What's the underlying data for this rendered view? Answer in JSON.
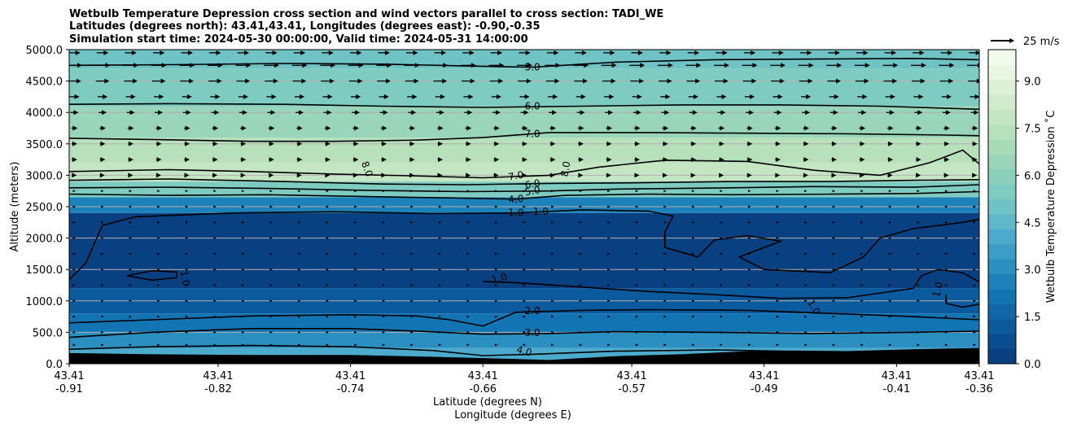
{
  "chart_data": {
    "type": "heatmap",
    "title_lines": [
      "Wetbulb Temperature Depression cross section and wind vectors parallel to cross section: TADI_WE",
      "Latitudes (degrees north): 43.41,43.41, Longitudes (degrees east): -0.90,-0.35",
      "Simulation start time: 2024-05-30 00:00:00, Valid time: 2024-05-31 14:00:00"
    ],
    "xlabel_lines": [
      "Latitude (degrees N)",
      "Longitude (degrees E)"
    ],
    "ylabel": "Altitude (meters)",
    "ylim": [
      0,
      5000
    ],
    "xlim": [
      -0.91,
      -0.36
    ],
    "y_ticks": [
      0,
      500,
      1000,
      1500,
      2000,
      2500,
      3000,
      3500,
      4000,
      4500,
      5000
    ],
    "y_tick_labels": [
      "0.0",
      "500.0",
      "1000.0",
      "1500.0",
      "2000.0",
      "2500.0",
      "3000.0",
      "3500.0",
      "4000.0",
      "4500.0",
      "5000.0"
    ],
    "x_ticks": [
      {
        "lon": -0.91,
        "lat_label": "43.41",
        "lon_label": "-0.91"
      },
      {
        "lon": -0.82,
        "lat_label": "43.41",
        "lon_label": "-0.82"
      },
      {
        "lon": -0.74,
        "lat_label": "43.41",
        "lon_label": "-0.74"
      },
      {
        "lon": -0.66,
        "lat_label": "43.41",
        "lon_label": "-0.66"
      },
      {
        "lon": -0.57,
        "lat_label": "43.41",
        "lon_label": "-0.57"
      },
      {
        "lon": -0.49,
        "lat_label": "43.41",
        "lon_label": "-0.49"
      },
      {
        "lon": -0.41,
        "lat_label": "43.41",
        "lon_label": "-0.41"
      },
      {
        "lon": -0.36,
        "lat_label": "43.41",
        "lon_label": "-0.36"
      }
    ],
    "colorbar": {
      "label": "Wetbulb Temperature Depression ˚C",
      "min": 0,
      "max": 10,
      "ticks": [
        "0.0",
        "1.5",
        "3.0",
        "4.5",
        "6.0",
        "7.5",
        "9.0"
      ],
      "tick_values": [
        0,
        1.5,
        3,
        4.5,
        6,
        7.5,
        9
      ],
      "colors": [
        "#084081",
        "#0a4d90",
        "#0c5a9e",
        "#0f67a9",
        "#1374b3",
        "#1e82ba",
        "#2b8fc1",
        "#3b9dc8",
        "#4cabcd",
        "#5db8ca",
        "#6fc3c5",
        "#7ecbc1",
        "#8bd0bd",
        "#99d5ba",
        "#a8dbb8",
        "#b7e1bb",
        "#c4e6c3",
        "#d0ebcc",
        "#dcf1d5",
        "#e8f6e2",
        "#f3fbef"
      ]
    },
    "wind_reference": {
      "label": "25 m/s",
      "speed": 25
    },
    "terrain_color": "#000000",
    "grid": "horizontal",
    "temperature_bands": [
      {
        "altitude_top": 250,
        "value": 4.0
      },
      {
        "altitude_top": 500,
        "value": 3.0
      },
      {
        "altitude_top": 800,
        "value": 2.0
      },
      {
        "altitude_top": 1200,
        "value": 1.0
      },
      {
        "altitude_top": 2400,
        "value": 0.4
      },
      {
        "altitude_top": 2650,
        "value": 2.5
      },
      {
        "altitude_top": 2900,
        "value": 5.5
      },
      {
        "altitude_top": 3200,
        "value": 7.8
      },
      {
        "altitude_top": 3600,
        "value": 7.2
      },
      {
        "altitude_top": 4100,
        "value": 6.4
      },
      {
        "altitude_top": 4700,
        "value": 5.5
      },
      {
        "altitude_top": 5000,
        "value": 4.8
      }
    ],
    "contours": [
      {
        "level": "5.0",
        "label": "5.0",
        "points": [
          [
            -0.91,
            4750
          ],
          [
            -0.85,
            4760
          ],
          [
            -0.78,
            4780
          ],
          [
            -0.72,
            4770
          ],
          [
            -0.67,
            4740
          ],
          [
            -0.63,
            4720
          ],
          [
            -0.58,
            4800
          ],
          [
            -0.52,
            4840
          ],
          [
            -0.46,
            4850
          ],
          [
            -0.4,
            4860
          ],
          [
            -0.36,
            4840
          ]
        ]
      },
      {
        "level": "6.0",
        "label": "6.0",
        "points": [
          [
            -0.91,
            4130
          ],
          [
            -0.85,
            4140
          ],
          [
            -0.78,
            4130
          ],
          [
            -0.72,
            4100
          ],
          [
            -0.66,
            4080
          ],
          [
            -0.6,
            4100
          ],
          [
            -0.54,
            4120
          ],
          [
            -0.48,
            4120
          ],
          [
            -0.42,
            4100
          ],
          [
            -0.36,
            4050
          ]
        ]
      },
      {
        "level": "7.0",
        "label": "7.0",
        "points": [
          [
            -0.91,
            3590
          ],
          [
            -0.86,
            3570
          ],
          [
            -0.8,
            3540
          ],
          [
            -0.75,
            3540
          ],
          [
            -0.7,
            3560
          ],
          [
            -0.66,
            3600
          ],
          [
            -0.62,
            3680
          ],
          [
            -0.56,
            3680
          ],
          [
            -0.5,
            3670
          ],
          [
            -0.44,
            3660
          ],
          [
            -0.38,
            3640
          ],
          [
            -0.36,
            3630
          ]
        ]
      },
      {
        "level": "7.0",
        "label": "7.0",
        "points": [
          [
            -0.91,
            3060
          ],
          [
            -0.85,
            3090
          ],
          [
            -0.8,
            3060
          ],
          [
            -0.75,
            3020
          ],
          [
            -0.7,
            2990
          ],
          [
            -0.66,
            2960
          ],
          [
            -0.62,
            3000
          ],
          [
            -0.59,
            3130
          ],
          [
            -0.55,
            3240
          ],
          [
            -0.5,
            3220
          ],
          [
            -0.46,
            3080
          ],
          [
            -0.42,
            3000
          ],
          [
            -0.39,
            3200
          ],
          [
            -0.37,
            3400
          ],
          [
            -0.36,
            3180
          ]
        ]
      },
      {
        "level": "6.0",
        "label": "6.0",
        "points": [
          [
            -0.91,
            2920
          ],
          [
            -0.85,
            2940
          ],
          [
            -0.78,
            2900
          ],
          [
            -0.72,
            2860
          ],
          [
            -0.67,
            2850
          ],
          [
            -0.62,
            2870
          ],
          [
            -0.57,
            2880
          ],
          [
            -0.51,
            2900
          ],
          [
            -0.45,
            2900
          ],
          [
            -0.4,
            2920
          ],
          [
            -0.36,
            2930
          ]
        ]
      },
      {
        "level": "5.0",
        "label": "5.0",
        "points": [
          [
            -0.91,
            2800
          ],
          [
            -0.85,
            2810
          ],
          [
            -0.79,
            2790
          ],
          [
            -0.73,
            2760
          ],
          [
            -0.67,
            2740
          ],
          [
            -0.62,
            2750
          ],
          [
            -0.58,
            2780
          ],
          [
            -0.51,
            2800
          ],
          [
            -0.46,
            2820
          ],
          [
            -0.4,
            2810
          ],
          [
            -0.36,
            2850
          ]
        ]
      },
      {
        "level": "4.0",
        "label": "4.0",
        "points": [
          [
            -0.91,
            2700
          ],
          [
            -0.85,
            2680
          ],
          [
            -0.79,
            2690
          ],
          [
            -0.73,
            2660
          ],
          [
            -0.68,
            2640
          ],
          [
            -0.64,
            2620
          ],
          [
            -0.61,
            2680
          ],
          [
            -0.56,
            2700
          ],
          [
            -0.51,
            2690
          ],
          [
            -0.45,
            2700
          ],
          [
            -0.4,
            2710
          ],
          [
            -0.36,
            2740
          ]
        ]
      },
      {
        "level": "1.0",
        "label": "1.0",
        "points": [
          [
            -0.91,
            1340
          ],
          [
            -0.9,
            1600
          ],
          [
            -0.89,
            2200
          ],
          [
            -0.87,
            2340
          ],
          [
            -0.81,
            2400
          ],
          [
            -0.75,
            2420
          ],
          [
            -0.69,
            2390
          ],
          [
            -0.64,
            2400
          ],
          [
            -0.6,
            2450
          ],
          [
            -0.56,
            2430
          ],
          [
            -0.545,
            2350
          ],
          [
            -0.55,
            2100
          ],
          [
            -0.55,
            1850
          ],
          [
            -0.53,
            1700
          ],
          [
            -0.52,
            1970
          ],
          [
            -0.5,
            2040
          ],
          [
            -0.48,
            1950
          ],
          [
            -0.495,
            1800
          ],
          [
            -0.505,
            1700
          ],
          [
            -0.49,
            1500
          ],
          [
            -0.45,
            1450
          ],
          [
            -0.43,
            1700
          ],
          [
            -0.42,
            2000
          ],
          [
            -0.4,
            2150
          ],
          [
            -0.37,
            2250
          ],
          [
            -0.36,
            2300
          ]
        ]
      },
      {
        "level": "1.0",
        "label": "1.0",
        "points": [
          [
            -0.36,
            1300
          ],
          [
            -0.37,
            1450
          ],
          [
            -0.385,
            1500
          ],
          [
            -0.395,
            1400
          ],
          [
            -0.4,
            1200
          ],
          [
            -0.44,
            1050
          ],
          [
            -0.48,
            1040
          ],
          [
            -0.52,
            1100
          ],
          [
            -0.56,
            1150
          ],
          [
            -0.6,
            1220
          ],
          [
            -0.64,
            1290
          ],
          [
            -0.66,
            1310
          ]
        ]
      },
      {
        "level": "1.0",
        "label": "1.0",
        "points": [
          [
            -0.875,
            1400
          ],
          [
            -0.86,
            1480
          ],
          [
            -0.845,
            1460
          ],
          [
            -0.845,
            1370
          ],
          [
            -0.86,
            1330
          ],
          [
            -0.875,
            1400
          ]
        ]
      },
      {
        "level": "1.0",
        "label": "1.0",
        "points": [
          [
            -0.36,
            950
          ],
          [
            -0.37,
            900
          ],
          [
            -0.38,
            960
          ],
          [
            -0.38,
            1100
          ]
        ]
      },
      {
        "level": "2.0",
        "label": "2.0",
        "points": [
          [
            -0.91,
            650
          ],
          [
            -0.86,
            700
          ],
          [
            -0.8,
            760
          ],
          [
            -0.74,
            780
          ],
          [
            -0.7,
            760
          ],
          [
            -0.68,
            700
          ],
          [
            -0.66,
            600
          ],
          [
            -0.64,
            820
          ],
          [
            -0.6,
            850
          ],
          [
            -0.56,
            860
          ],
          [
            -0.5,
            850
          ],
          [
            -0.45,
            800
          ],
          [
            -0.4,
            750
          ],
          [
            -0.36,
            700
          ]
        ]
      },
      {
        "level": "3.0",
        "label": "3.0",
        "points": [
          [
            -0.91,
            420
          ],
          [
            -0.86,
            500
          ],
          [
            -0.8,
            560
          ],
          [
            -0.74,
            560
          ],
          [
            -0.7,
            520
          ],
          [
            -0.66,
            470
          ],
          [
            -0.62,
            480
          ],
          [
            -0.58,
            510
          ],
          [
            -0.52,
            500
          ],
          [
            -0.46,
            480
          ],
          [
            -0.4,
            500
          ],
          [
            -0.36,
            520
          ]
        ]
      },
      {
        "level": "4.0",
        "label": "4.0",
        "points": [
          [
            -0.91,
            230
          ],
          [
            -0.86,
            270
          ],
          [
            -0.8,
            290
          ],
          [
            -0.74,
            270
          ],
          [
            -0.69,
            210
          ],
          [
            -0.66,
            130
          ],
          [
            -0.63,
            150
          ],
          [
            -0.58,
            200
          ],
          [
            -0.52,
            220
          ],
          [
            -0.48,
            200
          ],
          [
            -0.44,
            190
          ],
          [
            -0.4,
            220
          ],
          [
            -0.36,
            240
          ]
        ]
      }
    ],
    "contour_labels": [
      {
        "text": "5.0",
        "x": -0.63,
        "y": 4720,
        "angle": 0
      },
      {
        "text": "6.0",
        "x": -0.63,
        "y": 4100,
        "angle": 0
      },
      {
        "text": "7.0",
        "x": -0.63,
        "y": 3660,
        "angle": 0
      },
      {
        "text": "8.0",
        "x": -0.73,
        "y": 3100,
        "angle": 70
      },
      {
        "text": "8.0",
        "x": -0.61,
        "y": 3100,
        "angle": -80
      },
      {
        "text": "7.0",
        "x": -0.64,
        "y": 2990,
        "angle": -10
      },
      {
        "text": "6.0",
        "x": -0.63,
        "y": 2860,
        "angle": -10
      },
      {
        "text": "5.0",
        "x": -0.63,
        "y": 2750,
        "angle": -10
      },
      {
        "text": "4.0",
        "x": -0.64,
        "y": 2620,
        "angle": -5
      },
      {
        "text": "1.0",
        "x": -0.64,
        "y": 2400,
        "angle": 0
      },
      {
        "text": "1.0",
        "x": -0.625,
        "y": 2420,
        "angle": 0
      },
      {
        "text": "1.0",
        "x": -0.84,
        "y": 1360,
        "angle": 80
      },
      {
        "text": "1.0",
        "x": -0.65,
        "y": 1360,
        "angle": -15
      },
      {
        "text": "1.0",
        "x": -0.385,
        "y": 1180,
        "angle": -75
      },
      {
        "text": "1.0",
        "x": -0.46,
        "y": 900,
        "angle": 60
      },
      {
        "text": "2.0",
        "x": -0.63,
        "y": 840,
        "angle": 0
      },
      {
        "text": "3.0",
        "x": -0.63,
        "y": 490,
        "angle": 0
      },
      {
        "text": "4.0",
        "x": -0.635,
        "y": 200,
        "angle": 15
      }
    ],
    "terrain_profile": [
      [
        -0.91,
        170
      ],
      [
        -0.86,
        150
      ],
      [
        -0.8,
        140
      ],
      [
        -0.74,
        140
      ],
      [
        -0.69,
        110
      ],
      [
        -0.66,
        90
      ],
      [
        -0.62,
        60
      ],
      [
        -0.58,
        120
      ],
      [
        -0.54,
        150
      ],
      [
        -0.5,
        200
      ],
      [
        -0.47,
        190
      ],
      [
        -0.44,
        200
      ],
      [
        -0.4,
        220
      ],
      [
        -0.36,
        240
      ]
    ],
    "wind_rows": [
      {
        "altitude": 4950,
        "speed": 12
      },
      {
        "altitude": 4750,
        "speed": 16
      },
      {
        "altitude": 4500,
        "speed": 14
      },
      {
        "altitude": 4250,
        "speed": 10
      },
      {
        "altitude": 4000,
        "speed": 8
      },
      {
        "altitude": 3750,
        "speed": 6
      },
      {
        "altitude": 3500,
        "speed": 5
      },
      {
        "altitude": 3250,
        "speed": 5
      },
      {
        "altitude": 3000,
        "speed": 4
      },
      {
        "altitude": 2750,
        "speed": 3
      },
      {
        "altitude": 2500,
        "speed": 2
      },
      {
        "altitude": 2250,
        "speed": 1.5
      },
      {
        "altitude": 2000,
        "speed": 1.5
      },
      {
        "altitude": 1750,
        "speed": 1.5
      },
      {
        "altitude": 1500,
        "speed": 1.5
      },
      {
        "altitude": 1250,
        "speed": 1.5
      },
      {
        "altitude": 1000,
        "speed": 2
      },
      {
        "altitude": 750,
        "speed": 2
      },
      {
        "altitude": 500,
        "speed": 2.5
      },
      {
        "altitude": 300,
        "speed": 3
      }
    ],
    "wind_columns": 33
  }
}
